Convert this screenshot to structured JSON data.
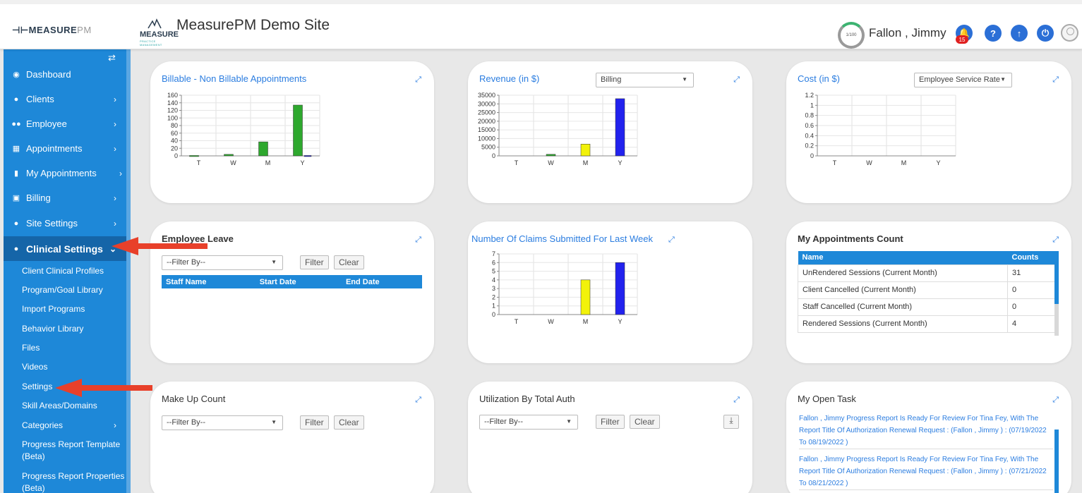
{
  "header": {
    "logo_text_1": "MEASURE",
    "logo_text_2": "PM",
    "logo2_main": "MEASURE",
    "logo2_sub": "PRACTICE MANAGEMENT",
    "site_title": "MeasurePM Demo Site",
    "progress_label": "1/100",
    "user_name": "Fallon , Jimmy",
    "notification_count": "15"
  },
  "sidebar": {
    "items": [
      {
        "label": "Dashboard",
        "icon": "dashboard-icon"
      },
      {
        "label": "Clients",
        "icon": "user-icon"
      },
      {
        "label": "Employee",
        "icon": "users-icon"
      },
      {
        "label": "Appointments",
        "icon": "calendar-icon"
      },
      {
        "label": "My Appointments",
        "icon": "book-icon"
      },
      {
        "label": "Billing",
        "icon": "money-icon"
      },
      {
        "label": "Site Settings",
        "icon": "user-icon"
      },
      {
        "label": "Clinical Settings",
        "icon": "user-icon"
      }
    ],
    "sub_items": [
      "Client Clinical Profiles",
      "Program/Goal Library",
      "Import Programs",
      "Behavior Library",
      "Files",
      "Videos",
      "Settings",
      "Skill Areas/Domains",
      "Categories",
      "Progress Report Template (Beta)",
      "Progress Report Properties (Beta)"
    ]
  },
  "cards": {
    "billable": {
      "title": "Billable - Non Billable Appointments"
    },
    "revenue": {
      "title": "Revenue (in $)",
      "select": "Billing"
    },
    "cost": {
      "title": "Cost (in $)",
      "select": "Employee Service Rate"
    },
    "employee_leave": {
      "title": "Employee Leave",
      "filter_placeholder": "--Filter By--",
      "filter_btn": "Filter",
      "clear_btn": "Clear",
      "columns": [
        "Staff Name",
        "Start Date",
        "End Date"
      ]
    },
    "claims": {
      "title": "Number Of Claims Submitted For Last Week"
    },
    "my_appt_count": {
      "title": "My Appointments Count",
      "columns": [
        "Name",
        "Counts"
      ],
      "rows": [
        {
          "name": "UnRendered Sessions (Current Month)",
          "count": "31"
        },
        {
          "name": "Client Cancelled (Current Month)",
          "count": "0"
        },
        {
          "name": "Staff Cancelled (Current Month)",
          "count": "0"
        },
        {
          "name": "Rendered Sessions (Current Month)",
          "count": "4"
        }
      ]
    },
    "makeup": {
      "title": "Make Up Count",
      "filter_placeholder": "--Filter By--",
      "filter_btn": "Filter",
      "clear_btn": "Clear"
    },
    "utilization": {
      "title": "Utilization By Total Auth",
      "filter_placeholder": "--Filter By--",
      "filter_btn": "Filter",
      "clear_btn": "Clear"
    },
    "open_task": {
      "title": "My Open Task",
      "tasks": [
        "Fallon , Jimmy Progress Report Is Ready For Review For Tina Fey, With The Report Title Of Authorization Renewal Request : (Fallon , Jimmy ) : (07/19/2022 To 08/19/2022 )",
        "Fallon , Jimmy Progress Report Is Ready For Review For Tina Fey, With The Report Title Of Authorization Renewal Request : (Fallon , Jimmy ) : (07/21/2022 To 08/21/2022 )"
      ]
    }
  },
  "chart_data": [
    {
      "type": "bar",
      "title": "Billable - Non Billable Appointments",
      "categories": [
        "T",
        "W",
        "M",
        "Y"
      ],
      "series": [
        {
          "values": [
            1,
            4,
            37,
            134
          ],
          "color": "#2ea82e"
        },
        {
          "values": [
            0,
            0,
            0,
            1
          ],
          "color": "#2222cc"
        }
      ],
      "ylim": [
        0,
        160
      ],
      "yticks": [
        0,
        20,
        40,
        60,
        80,
        100,
        120,
        140,
        160
      ]
    },
    {
      "type": "bar",
      "title": "Revenue (in $)",
      "categories": [
        "T",
        "W",
        "M",
        "Y"
      ],
      "values": [
        0,
        900,
        6800,
        33000
      ],
      "colors": [
        "#2ea82e",
        "#2ea82e",
        "#f2f20a",
        "#2222ee"
      ],
      "ylim": [
        0,
        35000
      ],
      "yticks": [
        0,
        5000,
        10000,
        15000,
        20000,
        25000,
        30000,
        35000
      ]
    },
    {
      "type": "bar",
      "title": "Cost (in $)",
      "categories": [
        "T",
        "W",
        "M",
        "Y"
      ],
      "values": [
        0,
        0,
        0,
        0
      ],
      "ylim": [
        0,
        1.2
      ],
      "yticks": [
        0,
        0.2,
        0.4,
        0.6,
        0.8,
        1,
        1.2
      ]
    },
    {
      "type": "bar",
      "title": "Number Of Claims Submitted For Last Week",
      "categories": [
        "T",
        "W",
        "M",
        "Y"
      ],
      "values": [
        0,
        0,
        4,
        6
      ],
      "colors": [
        "#2ea82e",
        "#2ea82e",
        "#f2f20a",
        "#2222ee"
      ],
      "ylim": [
        0,
        7
      ],
      "yticks": [
        0,
        1,
        2,
        3,
        4,
        5,
        6,
        7
      ]
    }
  ]
}
